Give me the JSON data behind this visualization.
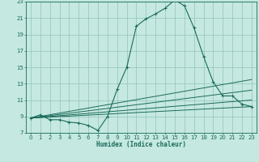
{
  "xlabel": "Humidex (Indice chaleur)",
  "bg_color": "#c5e8e0",
  "grid_color": "#90c4bc",
  "line_color": "#1a6b5a",
  "xlim": [
    -0.5,
    23.5
  ],
  "ylim": [
    7,
    23
  ],
  "xticks": [
    0,
    1,
    2,
    3,
    4,
    5,
    6,
    7,
    8,
    9,
    10,
    11,
    12,
    13,
    14,
    15,
    16,
    17,
    18,
    19,
    20,
    21,
    22,
    23
  ],
  "yticks": [
    7,
    9,
    11,
    13,
    15,
    17,
    19,
    21,
    23
  ],
  "main_curve_x": [
    0,
    1,
    2,
    3,
    4,
    5,
    6,
    7,
    8,
    9,
    10,
    11,
    12,
    13,
    14,
    15,
    16,
    17,
    18,
    19,
    20,
    21,
    22,
    23
  ],
  "main_curve_y": [
    8.8,
    9.2,
    8.6,
    8.6,
    8.3,
    8.2,
    7.9,
    7.3,
    9.0,
    12.3,
    15.0,
    20.0,
    20.9,
    21.5,
    22.2,
    23.2,
    22.5,
    19.8,
    16.3,
    13.2,
    11.5,
    11.5,
    10.5,
    10.2
  ],
  "ref_lines": [
    {
      "x0": 0,
      "y0": 8.8,
      "x1": 23,
      "y1": 10.2
    },
    {
      "x0": 0,
      "y0": 8.8,
      "x1": 23,
      "y1": 11.0
    },
    {
      "x0": 0,
      "y0": 8.8,
      "x1": 23,
      "y1": 12.2
    },
    {
      "x0": 0,
      "y0": 8.8,
      "x1": 23,
      "y1": 13.5
    }
  ]
}
